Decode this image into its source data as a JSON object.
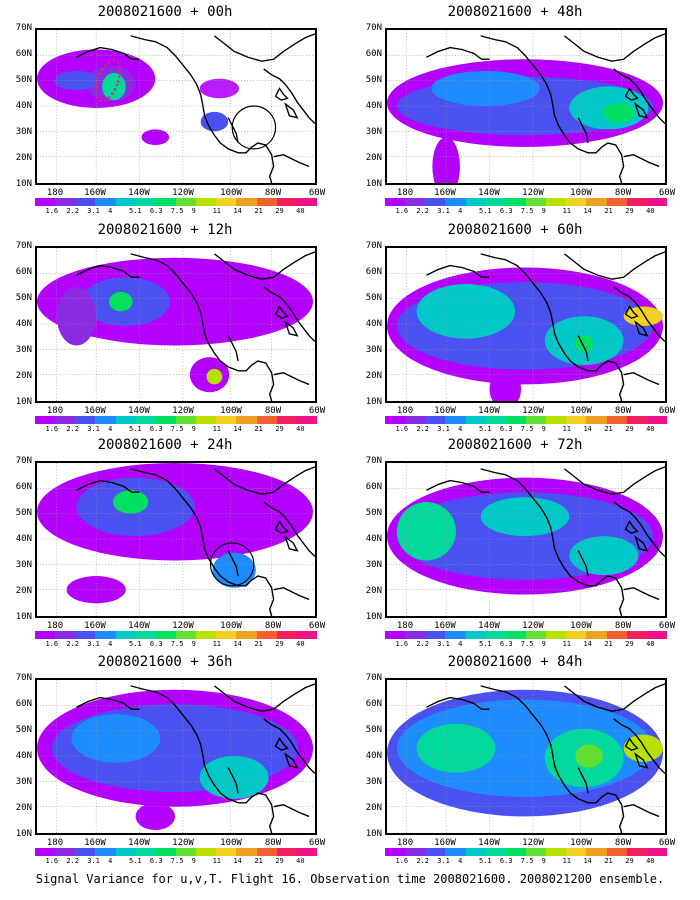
{
  "footer": "Signal Variance for u,v,T. Flight 16. Observation time 2008021600. 2008021200 ensemble.",
  "y_axis_labels": [
    "70N",
    "60N",
    "50N",
    "40N",
    "30N",
    "20N",
    "10N"
  ],
  "x_axis_labels": [
    "180",
    "160W",
    "140W",
    "120W",
    "100W",
    "80W",
    "60W"
  ],
  "colorbar": {
    "labels": [
      "1.6",
      "2.2",
      "3.1",
      "4",
      "5.1",
      "6.3",
      "7.5",
      "9",
      "11",
      "14",
      "21",
      "29",
      "40"
    ],
    "colors": [
      "#b400ff",
      "#8a2be2",
      "#4b50f0",
      "#1e8cff",
      "#00c8c8",
      "#00d89c",
      "#00e060",
      "#60e030",
      "#b8e000",
      "#f0d020",
      "#f0a020",
      "#f06030",
      "#f02060",
      "#f0108c"
    ]
  },
  "panels": [
    {
      "title": "2008021600 + 00h"
    },
    {
      "title": "2008021600 + 48h"
    },
    {
      "title": "2008021600 + 12h"
    },
    {
      "title": "2008021600 + 60h"
    },
    {
      "title": "2008021600 + 24h"
    },
    {
      "title": "2008021600 + 72h"
    },
    {
      "title": "2008021600 + 36h"
    },
    {
      "title": "2008021600 + 84h"
    }
  ]
}
